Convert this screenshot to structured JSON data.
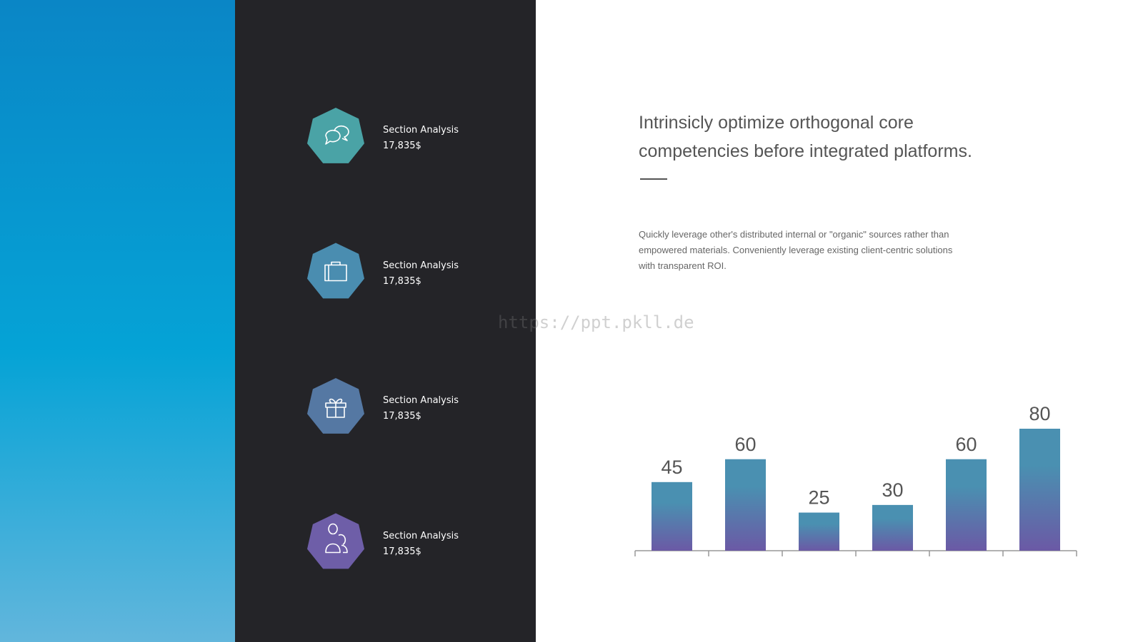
{
  "sidebar": {
    "items": [
      {
        "label": "Section Analysis",
        "value": "17,835$"
      },
      {
        "label": "Section Analysis",
        "value": "17,835$"
      },
      {
        "label": "Section Analysis",
        "value": "17,835$"
      },
      {
        "label": "Section Analysis",
        "value": "17,835$"
      }
    ]
  },
  "heading": {
    "lines": [
      "Intrinsicly optimize orthogonal core",
      "competencies before integrated platforms."
    ]
  },
  "body": {
    "lines": [
      "Quickly leverage other's distributed internal or \"organic\" sources rather than",
      "empowered materials. Conveniently leverage existing client-centric solutions",
      "with transparent ROI."
    ]
  },
  "watermark": "https://ppt.pkll.de",
  "chart_data": {
    "type": "bar",
    "categories": [
      null,
      null,
      null,
      null,
      null,
      null
    ],
    "values": [
      45,
      60,
      25,
      30,
      60,
      80
    ],
    "gradient": [
      "#4a90b1",
      "#6b59a5"
    ]
  }
}
